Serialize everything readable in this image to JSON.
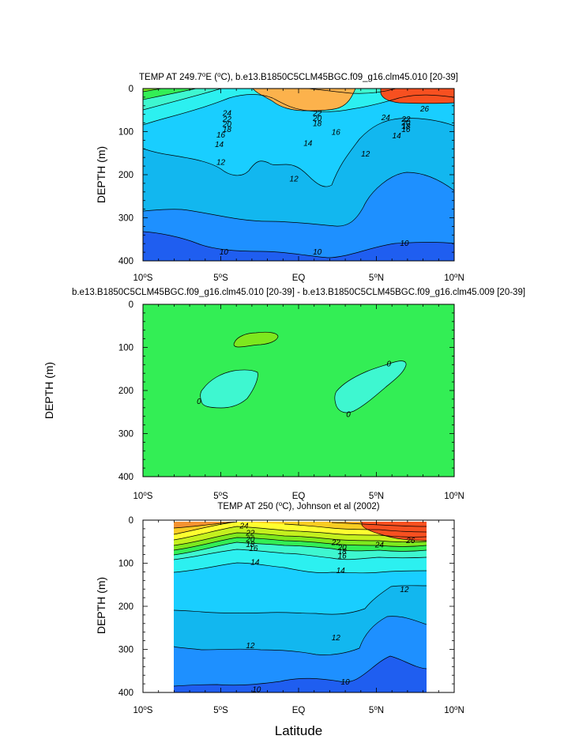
{
  "figure": {
    "xlabel": "Latitude",
    "colors": {
      "deep_blue": "#1f5ef0",
      "blue": "#1e90ff",
      "sky": "#12b7ef",
      "light_sky": "#19ceff",
      "cyan": "#2cf0f0",
      "aqua": "#3ef7d0",
      "green": "#33ee55",
      "lime": "#7de81e",
      "yellow_green": "#c4f01e",
      "yellow": "#ffff30",
      "gold": "#f8cc22",
      "amber": "#f8a826",
      "orange": "#f49230",
      "light_orange": "#fcb24c",
      "red_orange": "#f75020"
    }
  },
  "chart_data": [
    {
      "type": "contour",
      "title": "TEMP AT 249.7°E (°C), b.e13.B1850C5CLM45BGC.f09_g16.clm45.010 [20-39]",
      "title_prefix": "TEMP AT 249.7",
      "title_sup1": "o",
      "title_mid": "E (",
      "title_sup2": "o",
      "title_suffix": "C), b.e13.B1850C5CLM45BGC.f09_g16.clm45.010 [20-39]",
      "xlabel": "",
      "ylabel": "DEPTH (m)",
      "xlim": [
        -10,
        10
      ],
      "ylim": [
        400,
        0
      ],
      "xticks": [
        "10°S",
        "5°S",
        "EQ",
        "5°N",
        "10°N"
      ],
      "yticks": [
        0,
        100,
        200,
        300,
        400
      ],
      "contour_labels": [
        {
          "label": "24",
          "lat": -4.6,
          "depth": 56
        },
        {
          "label": "22",
          "lat": -4.6,
          "depth": 70
        },
        {
          "label": "20",
          "lat": -4.6,
          "depth": 82
        },
        {
          "label": "18",
          "lat": -4.6,
          "depth": 94
        },
        {
          "label": "16",
          "lat": -5.0,
          "depth": 106
        },
        {
          "label": "14",
          "lat": -5.1,
          "depth": 128
        },
        {
          "label": "12",
          "lat": -5.0,
          "depth": 170
        },
        {
          "label": "22",
          "lat": 1.2,
          "depth": 56
        },
        {
          "label": "20",
          "lat": 1.2,
          "depth": 68
        },
        {
          "label": "18",
          "lat": 1.2,
          "depth": 80
        },
        {
          "label": "16",
          "lat": 2.4,
          "depth": 100
        },
        {
          "label": "14",
          "lat": 0.6,
          "depth": 126
        },
        {
          "label": "12",
          "lat": -0.3,
          "depth": 208
        },
        {
          "label": "12",
          "lat": 4.3,
          "depth": 150
        },
        {
          "label": "24",
          "lat": 5.6,
          "depth": 66
        },
        {
          "label": "26",
          "lat": 8.1,
          "depth": 46
        },
        {
          "label": "22",
          "lat": 6.9,
          "depth": 70
        },
        {
          "label": "20",
          "lat": 6.9,
          "depth": 78
        },
        {
          "label": "18",
          "lat": 6.9,
          "depth": 86
        },
        {
          "label": "16",
          "lat": 6.9,
          "depth": 94
        },
        {
          "label": "14",
          "lat": 6.3,
          "depth": 108
        },
        {
          "label": "10",
          "lat": -4.8,
          "depth": 378
        },
        {
          "label": "10",
          "lat": 1.2,
          "depth": 378
        },
        {
          "label": "10",
          "lat": 6.8,
          "depth": 358
        }
      ]
    },
    {
      "type": "contour",
      "title": "b.e13.B1850C5CLM45BGC.f09_g16.clm45.010 [20-39] - b.e13.B1850C5CLM45BGC.f09_g16.clm45.009 [20-39]",
      "xlabel": "",
      "ylabel": "DEPTH (m)",
      "xlim": [
        -10,
        10
      ],
      "ylim": [
        400,
        0
      ],
      "xticks": [
        "10°S",
        "5°S",
        "EQ",
        "5°N",
        "10°N"
      ],
      "yticks": [
        0,
        100,
        200,
        300,
        400
      ],
      "contour_labels": [
        {
          "label": "0",
          "lat": -6.4,
          "depth": 224
        },
        {
          "label": "0",
          "lat": 5.8,
          "depth": 137
        },
        {
          "label": "0",
          "lat": 3.2,
          "depth": 254
        }
      ]
    },
    {
      "type": "contour",
      "title": "TEMP AT 250 (°C), Johnson et al (2002)",
      "title_prefix": "TEMP AT 250 (",
      "title_sup": "o",
      "title_suffix": "C), Johnson et al (2002)",
      "xlabel": "Latitude",
      "ylabel": "DEPTH (m)",
      "xlim": [
        -10,
        10
      ],
      "ylim": [
        400,
        0
      ],
      "data_lat_range": [
        -8,
        8.2
      ],
      "xticks": [
        "10°S",
        "5°S",
        "EQ",
        "5°N",
        "10°N"
      ],
      "yticks": [
        0,
        100,
        200,
        300,
        400
      ],
      "contour_labels": [
        {
          "label": "24",
          "lat": -3.5,
          "depth": 12
        },
        {
          "label": "22",
          "lat": -3.1,
          "depth": 28
        },
        {
          "label": "20",
          "lat": -3.1,
          "depth": 43
        },
        {
          "label": "18",
          "lat": -3.1,
          "depth": 55
        },
        {
          "label": "16",
          "lat": -2.9,
          "depth": 64
        },
        {
          "label": "22",
          "lat": 2.4,
          "depth": 50
        },
        {
          "label": "20",
          "lat": 2.8,
          "depth": 62
        },
        {
          "label": "18",
          "lat": 2.8,
          "depth": 72
        },
        {
          "label": "16",
          "lat": 2.8,
          "depth": 82
        },
        {
          "label": "24",
          "lat": 5.2,
          "depth": 56
        },
        {
          "label": "26",
          "lat": 7.2,
          "depth": 46
        },
        {
          "label": "14",
          "lat": -2.8,
          "depth": 96
        },
        {
          "label": "14",
          "lat": 2.7,
          "depth": 116
        },
        {
          "label": "12",
          "lat": 6.8,
          "depth": 160
        },
        {
          "label": "12",
          "lat": -3.1,
          "depth": 290
        },
        {
          "label": "12",
          "lat": 2.4,
          "depth": 272
        },
        {
          "label": "10",
          "lat": -2.7,
          "depth": 392
        },
        {
          "label": "10",
          "lat": 3.0,
          "depth": 374
        }
      ]
    }
  ]
}
